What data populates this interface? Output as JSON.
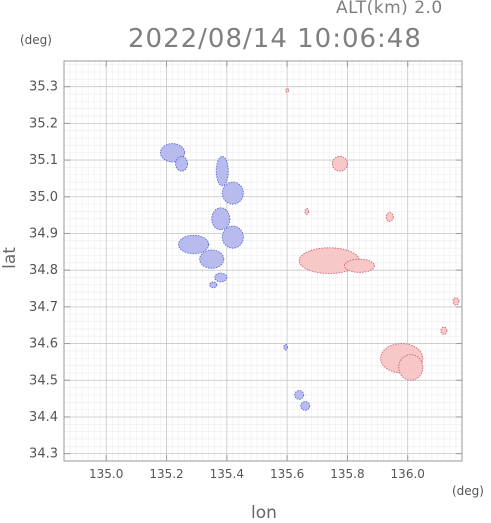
{
  "header": {
    "altitude_label": "ALT(km) 2.0",
    "timestamp": "2022/08/14 10:06:48"
  },
  "units": {
    "y_unit": "(deg)",
    "x_unit": "(deg)"
  },
  "colors": {
    "grid": "#c8c8c8",
    "axis": "#9a9a9a",
    "toward": "#b4b8ee",
    "toward_edge": "#5a5fd0",
    "away": "#f8c6c6",
    "away_edge": "#c85c6c"
  },
  "chart_data": {
    "type": "heatmap",
    "title": "2022/08/14 10:06:48",
    "subtitle": "ALT(km) 2.0",
    "xlabel": "lon",
    "ylabel": "lat",
    "xlim": [
      134.86,
      136.18
    ],
    "ylim": [
      34.28,
      35.37
    ],
    "xticks": [
      135.0,
      135.2,
      135.4,
      135.6,
      135.8,
      136.0
    ],
    "xtick_labels": [
      "135.0",
      "135.2",
      "135.4",
      "135.6",
      "135.8",
      "136.0"
    ],
    "yticks": [
      34.3,
      34.4,
      34.5,
      34.6,
      34.7,
      34.8,
      34.9,
      35.0,
      35.1,
      35.2,
      35.3
    ],
    "ytick_labels": [
      "34.3",
      "34.4",
      "34.5",
      "34.6",
      "34.7",
      "34.8",
      "34.9",
      "35.0",
      "35.1",
      "35.2",
      "35.3"
    ],
    "grid": true,
    "echoes": [
      {
        "kind": "toward",
        "lon": 135.22,
        "lat": 35.12,
        "rx": 0.04,
        "ry": 0.025
      },
      {
        "kind": "toward",
        "lon": 135.25,
        "lat": 35.09,
        "rx": 0.02,
        "ry": 0.02
      },
      {
        "kind": "toward",
        "lon": 135.385,
        "lat": 35.07,
        "rx": 0.02,
        "ry": 0.04
      },
      {
        "kind": "toward",
        "lon": 135.42,
        "lat": 35.01,
        "rx": 0.035,
        "ry": 0.03
      },
      {
        "kind": "toward",
        "lon": 135.38,
        "lat": 34.94,
        "rx": 0.03,
        "ry": 0.03
      },
      {
        "kind": "toward",
        "lon": 135.42,
        "lat": 34.89,
        "rx": 0.035,
        "ry": 0.03
      },
      {
        "kind": "toward",
        "lon": 135.29,
        "lat": 34.87,
        "rx": 0.05,
        "ry": 0.025
      },
      {
        "kind": "toward",
        "lon": 135.35,
        "lat": 34.83,
        "rx": 0.04,
        "ry": 0.025
      },
      {
        "kind": "toward",
        "lon": 135.38,
        "lat": 34.78,
        "rx": 0.02,
        "ry": 0.012
      },
      {
        "kind": "toward",
        "lon": 135.355,
        "lat": 34.76,
        "rx": 0.012,
        "ry": 0.008
      },
      {
        "kind": "toward",
        "lon": 135.66,
        "lat": 34.43,
        "rx": 0.015,
        "ry": 0.012
      },
      {
        "kind": "toward",
        "lon": 135.64,
        "lat": 34.46,
        "rx": 0.015,
        "ry": 0.012
      },
      {
        "kind": "toward",
        "lon": 135.595,
        "lat": 34.59,
        "rx": 0.006,
        "ry": 0.008
      },
      {
        "kind": "away",
        "lon": 135.74,
        "lat": 34.826,
        "rx": 0.1,
        "ry": 0.035
      },
      {
        "kind": "away",
        "lon": 135.84,
        "lat": 34.812,
        "rx": 0.05,
        "ry": 0.018
      },
      {
        "kind": "away",
        "lon": 135.98,
        "lat": 34.56,
        "rx": 0.07,
        "ry": 0.04
      },
      {
        "kind": "away",
        "lon": 136.01,
        "lat": 34.535,
        "rx": 0.04,
        "ry": 0.035
      },
      {
        "kind": "away",
        "lon": 135.775,
        "lat": 35.09,
        "rx": 0.025,
        "ry": 0.02
      },
      {
        "kind": "away",
        "lon": 135.94,
        "lat": 34.945,
        "rx": 0.012,
        "ry": 0.012
      },
      {
        "kind": "away",
        "lon": 136.12,
        "lat": 34.635,
        "rx": 0.01,
        "ry": 0.01
      },
      {
        "kind": "away",
        "lon": 136.16,
        "lat": 34.715,
        "rx": 0.01,
        "ry": 0.01
      },
      {
        "kind": "away",
        "lon": 135.665,
        "lat": 34.96,
        "rx": 0.006,
        "ry": 0.008
      },
      {
        "kind": "away",
        "lon": 135.6,
        "lat": 35.29,
        "rx": 0.005,
        "ry": 0.005
      }
    ]
  }
}
